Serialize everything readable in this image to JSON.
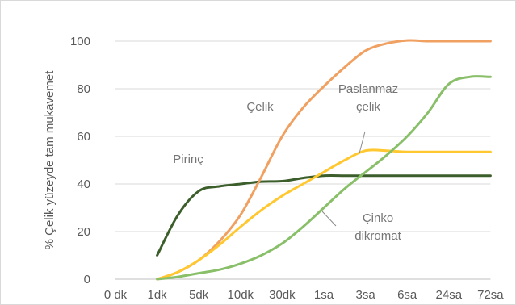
{
  "chart_data": {
    "type": "line",
    "title": "",
    "ylabel": "% Çelik yüzeyde tam mukavemet",
    "xlabel": "",
    "categories": [
      "0 dk",
      "1dk",
      "5dk",
      "10dk",
      "30dk",
      "1sa",
      "3sa",
      "6sa",
      "24sa",
      "72sa"
    ],
    "ylim": [
      0,
      100
    ],
    "yticks": [
      0,
      20,
      40,
      60,
      80,
      100
    ],
    "grid": true,
    "legend": "none",
    "series": [
      {
        "name": "Pirinç",
        "color": "#3b5e2b",
        "points": [
          [
            1,
            10
          ],
          [
            1.5,
            27
          ],
          [
            2,
            37
          ],
          [
            2.5,
            39
          ],
          [
            3,
            40
          ],
          [
            3.5,
            41
          ],
          [
            4,
            41.2
          ],
          [
            4.5,
            42.5
          ],
          [
            5,
            43.5
          ],
          [
            5.5,
            43.5
          ],
          [
            6,
            43.5
          ],
          [
            7,
            43.5
          ],
          [
            8,
            43.5
          ],
          [
            9,
            43.5
          ]
        ]
      },
      {
        "name": "Çelik",
        "color": "#f0a060",
        "points": [
          [
            1,
            0
          ],
          [
            1.5,
            3
          ],
          [
            2,
            8
          ],
          [
            2.5,
            16
          ],
          [
            3,
            27
          ],
          [
            3.5,
            43
          ],
          [
            4,
            60
          ],
          [
            4.5,
            72
          ],
          [
            5,
            81
          ],
          [
            5.5,
            89
          ],
          [
            6,
            96
          ],
          [
            6.5,
            99
          ],
          [
            7,
            100.3
          ],
          [
            7.5,
            100
          ],
          [
            8,
            100
          ],
          [
            9,
            100
          ]
        ]
      },
      {
        "name": "Paslanmaz çelik",
        "color": "#ffc830",
        "points": [
          [
            1,
            0
          ],
          [
            1.5,
            3
          ],
          [
            2,
            8
          ],
          [
            2.5,
            14.5
          ],
          [
            3,
            22
          ],
          [
            3.5,
            29
          ],
          [
            4,
            35
          ],
          [
            4.5,
            40
          ],
          [
            5,
            45
          ],
          [
            5.5,
            50
          ],
          [
            6,
            54
          ],
          [
            6.5,
            54
          ],
          [
            7,
            53.5
          ],
          [
            8,
            53.5
          ],
          [
            9,
            53.5
          ]
        ]
      },
      {
        "name": "Çinko dikromat",
        "color": "#88bf68",
        "points": [
          [
            1,
            0
          ],
          [
            1.5,
            1
          ],
          [
            2,
            2.5
          ],
          [
            2.5,
            4
          ],
          [
            3,
            6.5
          ],
          [
            3.5,
            10
          ],
          [
            4,
            15
          ],
          [
            4.5,
            22
          ],
          [
            5,
            30
          ],
          [
            5.5,
            38
          ],
          [
            6,
            45
          ],
          [
            6.5,
            52
          ],
          [
            7,
            60
          ],
          [
            7.5,
            70
          ],
          [
            8,
            82
          ],
          [
            8.5,
            85
          ],
          [
            9,
            85
          ]
        ]
      }
    ],
    "annotations": [
      {
        "lines": [
          "Pirinç"
        ]
      },
      {
        "lines": [
          "Çelik"
        ]
      },
      {
        "lines": [
          "Paslanmaz",
          "çelik"
        ]
      },
      {
        "lines": [
          "Çinko",
          "dikromat"
        ]
      }
    ]
  }
}
